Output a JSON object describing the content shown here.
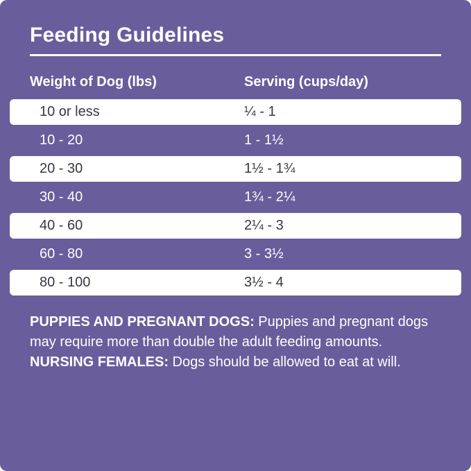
{
  "title": "Feeding Guidelines",
  "table": {
    "header_weight": "Weight of Dog (lbs)",
    "header_serving": "Serving (cups/day)",
    "rows": [
      {
        "weight": "10 or less",
        "serving": "¼ - 1"
      },
      {
        "weight": "10 - 20",
        "serving": "1 - 1½"
      },
      {
        "weight": "20 - 30",
        "serving": "1½ - 1¾"
      },
      {
        "weight": "30 - 40",
        "serving": "1¾ - 2¼"
      },
      {
        "weight": "40 - 60",
        "serving": "2¼ - 3"
      },
      {
        "weight": "60 - 80",
        "serving": "3 - 3½"
      },
      {
        "weight": "80 - 100",
        "serving": "3½ - 4"
      }
    ]
  },
  "notes": {
    "bold1": "PUPPIES AND PREGNANT DOGS:",
    "text1": " Puppies and pregnant dogs may require more than double the adult feeding amounts. ",
    "bold2": "NURSING FEMALES:",
    "text2": " Dogs should be allowed to eat at will."
  },
  "colors": {
    "background": "#6a5d9c",
    "row_background": "#ffffff",
    "row_text": "#3a3542",
    "text": "#ffffff"
  }
}
